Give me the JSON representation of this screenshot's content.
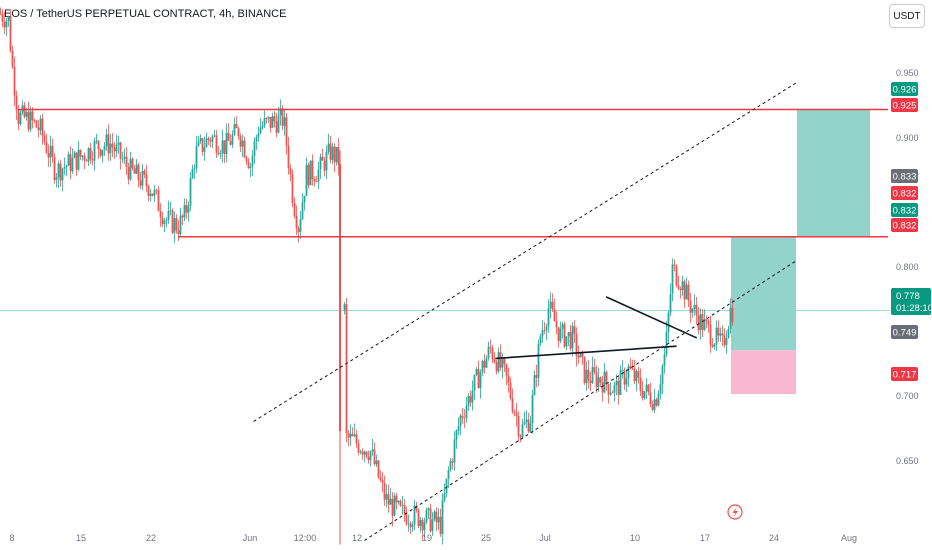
{
  "header": {
    "title": "EOS / TetherUS PERPETUAL CONTRACT, 4h, BINANCE",
    "currency_button": "USDT"
  },
  "colors": {
    "up": "#26a69a",
    "down": "#ef5350",
    "level_line": "#f23645",
    "target_zone": "#92d3ca",
    "stop_zone": "#f9b8cf",
    "last_price": "#089981",
    "grey_tag": "#6b6e76",
    "red_tag": "#f23645"
  },
  "chart_data": {
    "type": "candlestick",
    "symbol": "EOS / TetherUS PERPETUAL CONTRACT",
    "interval": "4h",
    "exchange": "BINANCE",
    "y_ticks": [
      "0.950",
      "0.900",
      "0.800",
      "0.700",
      "0.650"
    ],
    "x_ticks": [
      "8",
      "15",
      "22",
      "Jun",
      "12:00",
      "12",
      "19",
      "25",
      "Jul",
      "10",
      "17",
      "24",
      "Aug"
    ],
    "ylim": [
      0.603,
      1.005
    ],
    "horizontal_levels": [
      0.925,
      0.832
    ],
    "channel": {
      "upper": [
        [
          "Jun 8",
          0.697
        ],
        [
          "Aug 1",
          0.945
        ]
      ],
      "lower": [
        [
          "Jun 19",
          0.61
        ],
        [
          "Aug 1",
          0.815
        ]
      ]
    },
    "triangle": {
      "resistance": [
        [
          "Jul 13",
          0.788
        ],
        [
          "Jul 22",
          0.758
        ]
      ],
      "support": [
        [
          "Jul 2",
          0.743
        ],
        [
          "Jul 20",
          0.752
        ]
      ]
    },
    "position": {
      "entry": 0.749,
      "targets": [
        0.832,
        0.925
      ],
      "stop": 0.717
    },
    "last_price": "0.778",
    "countdown": "01:28:10",
    "price_tags": [
      {
        "label": "0.926",
        "kind": "green"
      },
      {
        "label": "0.925",
        "kind": "red"
      },
      {
        "label": "0.833",
        "kind": "grey"
      },
      {
        "label": "0.832",
        "kind": "red"
      },
      {
        "label": "0.832",
        "kind": "green"
      },
      {
        "label": "0.832",
        "kind": "red"
      },
      {
        "label": "0.749",
        "kind": "grey"
      },
      {
        "label": "0.717",
        "kind": "red"
      }
    ]
  }
}
